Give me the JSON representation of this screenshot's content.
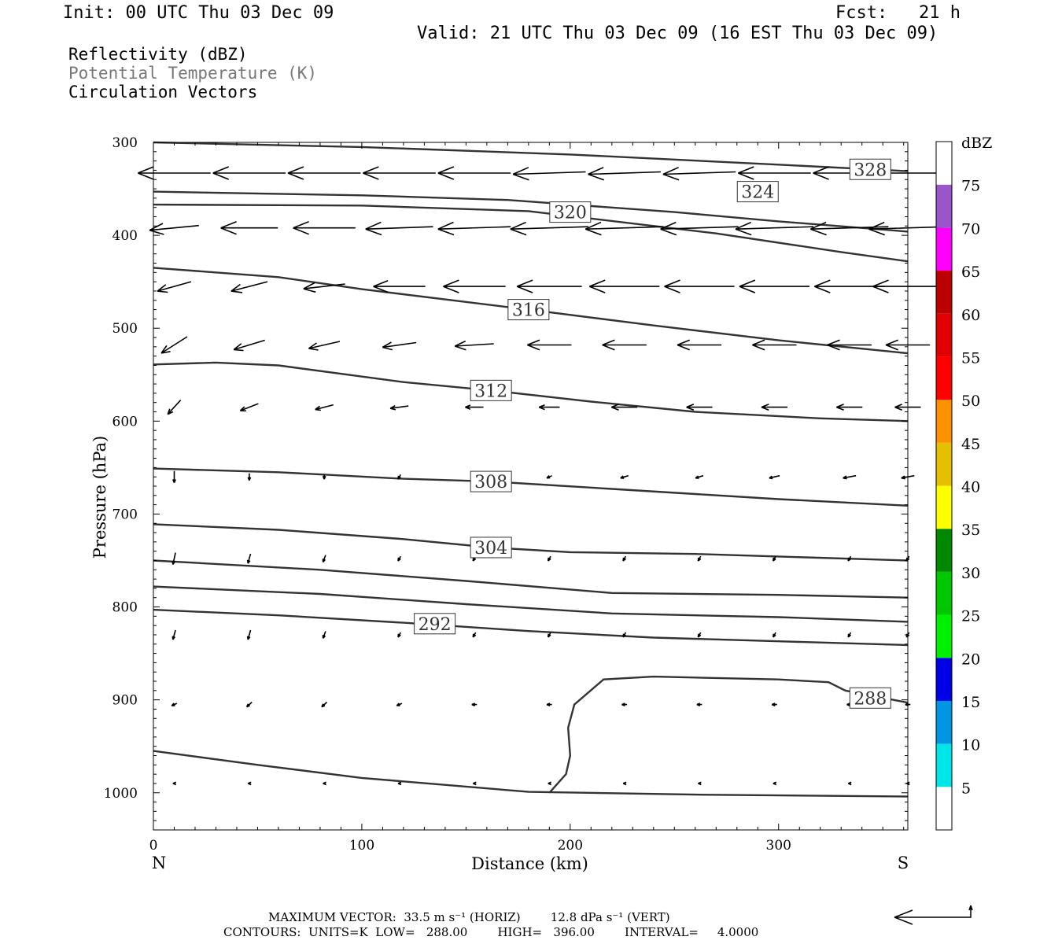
{
  "header": {
    "init": "Init: 00 UTC Thu 03 Dec 09",
    "fcst": "Fcst:   21 h",
    "valid": "Valid: 21 UTC Thu 03 Dec 09 (16 EST Thu 03 Dec 09)"
  },
  "legend": {
    "line1": "Reflectivity (dBZ)",
    "line2": "Potential Temperature (K)",
    "line3": "Circulation Vectors"
  },
  "footer": {
    "max_vector": "MAXIMUM VECTOR:  33.5 m s⁻¹ (HORIZ)        12.8 dPa s⁻¹ (VERT)",
    "contours": "CONTOURS:  UNITS=K  LOW=   288.00        HIGH=   396.00        INTERVAL=     4.0000"
  },
  "chart_data": {
    "type": "line",
    "title": "",
    "xlabel": "Distance (km)",
    "ylabel": "Pressure (hPa)",
    "xlim": [
      0,
      362
    ],
    "ylim": [
      1040,
      300
    ],
    "x_ticks": [
      0,
      100,
      200,
      300
    ],
    "y_ticks": [
      300,
      400,
      500,
      600,
      700,
      800,
      900,
      1000
    ],
    "x_end_labels": {
      "left": "N",
      "right": "S"
    },
    "colorbar": {
      "unit": "dBZ",
      "labels": [
        "5",
        "10",
        "15",
        "20",
        "25",
        "30",
        "35",
        "40",
        "45",
        "50",
        "55",
        "60",
        "65",
        "70",
        "75"
      ],
      "colors": [
        "#ffffff",
        "#00e5e5",
        "#0096e6",
        "#0000e6",
        "#00f000",
        "#00c800",
        "#008800",
        "#ffff00",
        "#e6bf00",
        "#ff9000",
        "#ff0000",
        "#e00000",
        "#bb0000",
        "#ff00ff",
        "#9955c9",
        "#ffffff"
      ]
    },
    "contours": [
      {
        "label": "",
        "points": [
          [
            0,
            300
          ],
          [
            100,
            305
          ],
          [
            200,
            313
          ],
          [
            300,
            324
          ],
          [
            362,
            331
          ]
        ]
      },
      {
        "label": "328",
        "label_at": [
          344,
          329
        ],
        "points": []
      },
      {
        "label": "324",
        "label_at": [
          290,
          353
        ],
        "points": [
          [
            0,
            353
          ],
          [
            100,
            357
          ],
          [
            170,
            362
          ],
          [
            250,
            375
          ],
          [
            300,
            385
          ],
          [
            362,
            396
          ]
        ]
      },
      {
        "label": "320",
        "label_at": [
          200,
          375
        ],
        "points": [
          [
            0,
            367
          ],
          [
            100,
            368
          ],
          [
            180,
            374
          ],
          [
            270,
            398
          ],
          [
            330,
            418
          ],
          [
            362,
            428
          ]
        ]
      },
      {
        "label": "316",
        "label_at": [
          180,
          480
        ],
        "points": [
          [
            0,
            435
          ],
          [
            60,
            445
          ],
          [
            100,
            458
          ],
          [
            180,
            480
          ],
          [
            240,
            497
          ],
          [
            300,
            513
          ],
          [
            362,
            527
          ]
        ]
      },
      {
        "label": "312",
        "label_at": [
          162,
          567
        ],
        "points": [
          [
            0,
            539
          ],
          [
            30,
            537
          ],
          [
            60,
            540
          ],
          [
            120,
            558
          ],
          [
            162,
            567
          ],
          [
            210,
            579
          ],
          [
            260,
            590
          ],
          [
            320,
            597
          ],
          [
            362,
            600
          ]
        ]
      },
      {
        "label": "308",
        "label_at": [
          162,
          665
        ],
        "points": [
          [
            0,
            651
          ],
          [
            60,
            655
          ],
          [
            120,
            662
          ],
          [
            162,
            665
          ],
          [
            220,
            673
          ],
          [
            300,
            684
          ],
          [
            362,
            691
          ]
        ]
      },
      {
        "label": "304",
        "label_at": [
          162,
          736
        ],
        "points": [
          [
            0,
            711
          ],
          [
            60,
            717
          ],
          [
            120,
            727
          ],
          [
            162,
            736
          ],
          [
            200,
            741
          ],
          [
            260,
            743
          ],
          [
            362,
            750
          ]
        ]
      },
      {
        "label": "",
        "points": [
          [
            0,
            750
          ],
          [
            80,
            760
          ],
          [
            150,
            772
          ],
          [
            220,
            785
          ],
          [
            300,
            787
          ],
          [
            362,
            790
          ]
        ]
      },
      {
        "label": "",
        "points": [
          [
            0,
            778
          ],
          [
            80,
            786
          ],
          [
            150,
            797
          ],
          [
            220,
            807
          ],
          [
            300,
            811
          ],
          [
            362,
            816
          ]
        ]
      },
      {
        "label": "292",
        "label_at": [
          135,
          818
        ],
        "points": [
          [
            0,
            803
          ],
          [
            60,
            809
          ],
          [
            120,
            817
          ],
          [
            180,
            826
          ],
          [
            240,
            833
          ],
          [
            300,
            837
          ],
          [
            362,
            841
          ]
        ]
      },
      {
        "label": "288",
        "label_at": [
          344,
          898
        ],
        "points": [
          [
            190,
            1000
          ],
          [
            198,
            980
          ],
          [
            200,
            960
          ],
          [
            199,
            930
          ],
          [
            202,
            905
          ],
          [
            216,
            878
          ],
          [
            240,
            875
          ],
          [
            300,
            878
          ],
          [
            324,
            881
          ],
          [
            332,
            890
          ],
          [
            362,
            903
          ]
        ]
      },
      {
        "label": "",
        "points": [
          [
            0,
            955
          ],
          [
            50,
            970
          ],
          [
            100,
            984
          ],
          [
            180,
            999
          ],
          [
            260,
            1002
          ],
          [
            362,
            1004
          ]
        ]
      }
    ],
    "vectors": {
      "columns_km": [
        10,
        46,
        82,
        118,
        154,
        190,
        226,
        262,
        298,
        334,
        362
      ],
      "rows": [
        {
          "p": 333,
          "u": [
            -28,
            -28,
            -28,
            -28,
            -28,
            -28,
            -28,
            -28,
            -28,
            -28,
            -28
          ],
          "w": [
            0,
            0,
            0,
            0,
            0,
            -1,
            -1,
            -1,
            0,
            0,
            0
          ]
        },
        {
          "p": 392,
          "u": [
            -19,
            -22,
            -24,
            -26,
            -28,
            -30,
            -30,
            -30,
            -30,
            -30,
            -30
          ],
          "w": [
            -2,
            0,
            0,
            -1,
            -1,
            -1,
            -1,
            -1,
            -1,
            -1,
            -1
          ]
        },
        {
          "p": 455,
          "u": [
            -13,
            -14,
            -16,
            -20,
            -24,
            -25,
            -27,
            -27,
            -27,
            -27,
            -27
          ],
          "w": [
            -4,
            -4,
            -2,
            0,
            0,
            0,
            0,
            0,
            0,
            0,
            0
          ]
        },
        {
          "p": 518,
          "u": [
            -10,
            -12,
            -12,
            -13,
            -15,
            -17,
            -17,
            -17,
            -17,
            -17,
            -17
          ],
          "w": [
            -7,
            -4,
            -3,
            -2,
            -1,
            0,
            0,
            0,
            0,
            0,
            0
          ]
        },
        {
          "p": 585,
          "u": [
            -5,
            -7,
            -7,
            -7,
            -7,
            -8,
            -10,
            -10,
            -10,
            -10,
            -10
          ],
          "w": [
            -6,
            -3,
            -2,
            -1,
            0,
            0,
            0,
            0,
            0,
            0,
            0
          ]
        },
        {
          "p": 660,
          "u": [
            0,
            0,
            0,
            -1,
            -2,
            -2,
            -3,
            -3,
            -4,
            -5,
            -5
          ],
          "w": [
            -5,
            -3,
            -2,
            -2,
            -1,
            -1,
            -1,
            -1,
            -1,
            -1,
            -1
          ]
        },
        {
          "p": 748,
          "u": [
            -1,
            -1,
            -1,
            -1,
            -1,
            -1,
            -1,
            -1,
            -1,
            -1,
            -1
          ],
          "w": [
            -5,
            -4,
            -3,
            -2,
            -2,
            -2,
            -2,
            -2,
            -2,
            -2,
            -2
          ]
        },
        {
          "p": 830,
          "u": [
            -1,
            -1,
            -1,
            -1,
            -1,
            -1,
            -1,
            -1,
            -1,
            -1,
            -1
          ],
          "w": [
            -4,
            -4,
            -3,
            -2,
            -2,
            -2,
            -2,
            -2,
            -2,
            -2,
            -2
          ]
        },
        {
          "p": 905,
          "u": [
            -2,
            -2,
            -2,
            -2,
            -2,
            -2,
            -2,
            -2,
            -2,
            -2,
            -2
          ],
          "w": [
            -1,
            -2,
            -2,
            -1,
            0,
            0,
            0,
            0,
            0,
            0,
            0
          ]
        },
        {
          "p": 990,
          "u": [
            -1,
            -1,
            -1,
            -1,
            -1,
            -1,
            -1,
            -1,
            -1,
            -1,
            -1
          ],
          "w": [
            0,
            0,
            0,
            0,
            0,
            0,
            0,
            0,
            0,
            0,
            0
          ]
        }
      ]
    }
  }
}
